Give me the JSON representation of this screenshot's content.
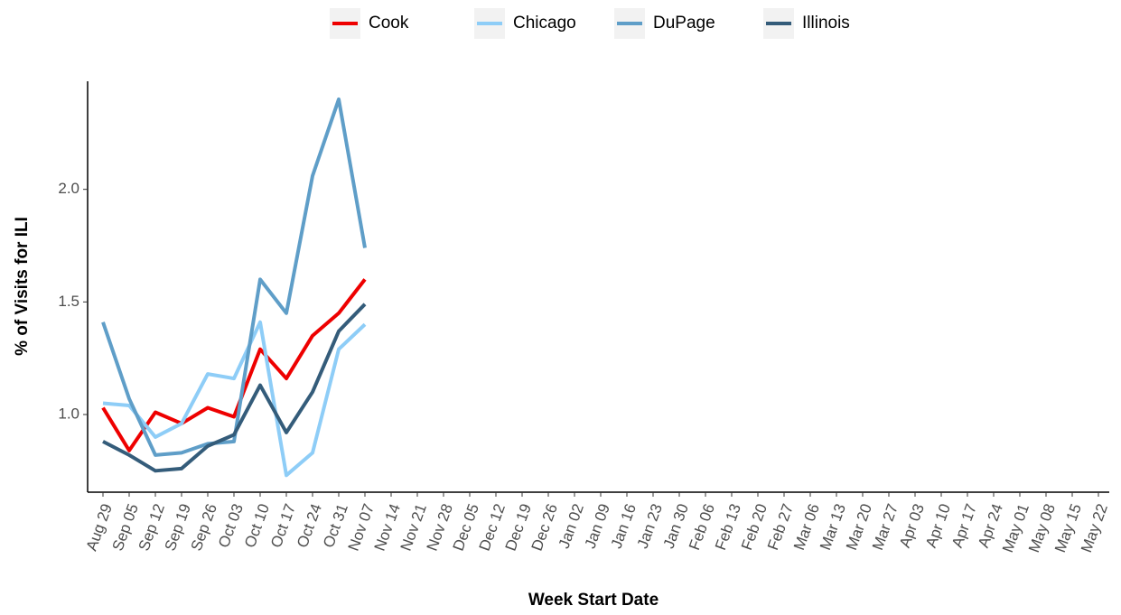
{
  "chart_data": {
    "type": "line",
    "x_label": "Week Start Date",
    "y_label": "% of Visits for ILI",
    "categories": [
      "Aug 29",
      "Sep 05",
      "Sep 12",
      "Sep 19",
      "Sep 26",
      "Oct 03",
      "Oct 10",
      "Oct 17",
      "Oct 24",
      "Oct 31",
      "Nov 07",
      "Nov 14",
      "Nov 21",
      "Nov 28",
      "Dec 05",
      "Dec 12",
      "Dec 19",
      "Dec 26",
      "Jan 02",
      "Jan 09",
      "Jan 16",
      "Jan 23",
      "Jan 30",
      "Feb 06",
      "Feb 13",
      "Feb 20",
      "Feb 27",
      "Mar 06",
      "Mar 13",
      "Mar 20",
      "Mar 27",
      "Apr 03",
      "Apr 10",
      "Apr 17",
      "Apr 24",
      "May 01",
      "May 08",
      "May 15",
      "May 22"
    ],
    "series": [
      {
        "name": "Cook",
        "color": "#ee0000",
        "values": [
          1.03,
          0.84,
          1.01,
          0.96,
          1.03,
          0.99,
          1.29,
          1.16,
          1.35,
          1.45,
          1.6,
          null,
          null,
          null,
          null,
          null,
          null,
          null,
          null,
          null,
          null,
          null,
          null,
          null,
          null,
          null,
          null,
          null,
          null,
          null,
          null,
          null,
          null,
          null,
          null,
          null,
          null,
          null,
          null
        ]
      },
      {
        "name": "Chicago",
        "color": "#8ecdf7",
        "values": [
          1.05,
          1.04,
          0.9,
          0.96,
          1.18,
          1.16,
          1.41,
          0.73,
          0.83,
          1.29,
          1.4,
          null,
          null,
          null,
          null,
          null,
          null,
          null,
          null,
          null,
          null,
          null,
          null,
          null,
          null,
          null,
          null,
          null,
          null,
          null,
          null,
          null,
          null,
          null,
          null,
          null,
          null,
          null,
          null
        ]
      },
      {
        "name": "DuPage",
        "color": "#5f9ec8",
        "values": [
          1.41,
          1.07,
          0.82,
          0.83,
          0.87,
          0.88,
          1.6,
          1.45,
          2.06,
          2.4,
          1.74,
          null,
          null,
          null,
          null,
          null,
          null,
          null,
          null,
          null,
          null,
          null,
          null,
          null,
          null,
          null,
          null,
          null,
          null,
          null,
          null,
          null,
          null,
          null,
          null,
          null,
          null,
          null,
          null
        ]
      },
      {
        "name": "Illinois",
        "color": "#345c7a",
        "values": [
          0.88,
          0.82,
          0.75,
          0.76,
          0.86,
          0.91,
          1.13,
          0.92,
          1.1,
          1.37,
          1.49,
          null,
          null,
          null,
          null,
          null,
          null,
          null,
          null,
          null,
          null,
          null,
          null,
          null,
          null,
          null,
          null,
          null,
          null,
          null,
          null,
          null,
          null,
          null,
          null,
          null,
          null,
          null,
          null
        ]
      }
    ],
    "ylim": [
      0.655,
      2.48
    ],
    "yticks": [
      {
        "value": 1,
        "label": "1.0"
      },
      {
        "value": 1.5,
        "label": "1.5"
      },
      {
        "value": 2,
        "label": "2.0"
      }
    ],
    "legend": "top",
    "grid": false
  }
}
